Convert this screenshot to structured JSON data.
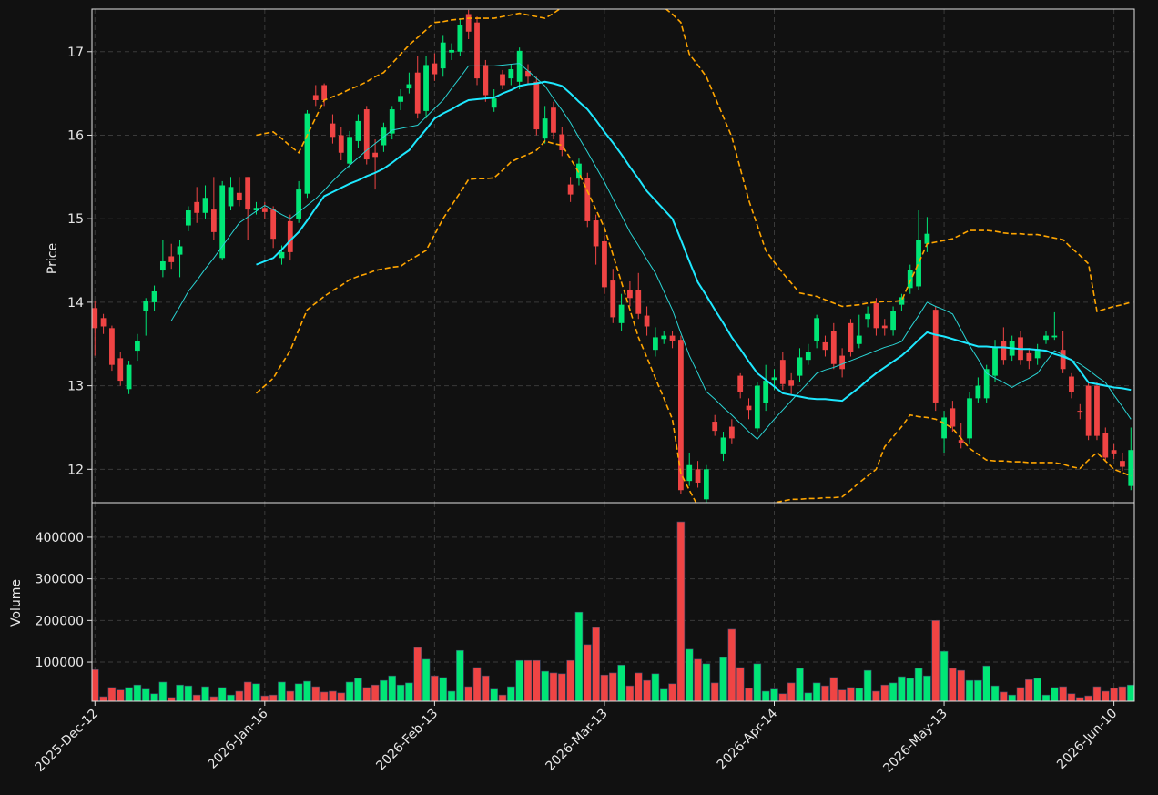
{
  "chart_data": {
    "type": "candlestick",
    "grid": true,
    "up_color": "#00e676",
    "down_color": "#ef4444",
    "ylabel": "Price",
    "ylim": [
      11.6,
      17.51
    ],
    "yticks": [
      12,
      13,
      14,
      15,
      16,
      17
    ],
    "categories": [
      "2025-Dec-12",
      null,
      null,
      null,
      null,
      null,
      null,
      null,
      null,
      null,
      null,
      null,
      null,
      null,
      null,
      null,
      null,
      null,
      null,
      null,
      "2026-Jan-16",
      null,
      null,
      null,
      null,
      null,
      null,
      null,
      null,
      null,
      null,
      null,
      null,
      null,
      null,
      null,
      null,
      null,
      null,
      null,
      "2026-Feb-13",
      null,
      null,
      null,
      null,
      null,
      null,
      null,
      null,
      null,
      null,
      null,
      null,
      null,
      null,
      null,
      null,
      null,
      null,
      null,
      "2026-Mar-13",
      null,
      null,
      null,
      null,
      null,
      null,
      null,
      null,
      null,
      null,
      null,
      null,
      null,
      null,
      null,
      null,
      null,
      null,
      null,
      "2026-Apr-14",
      null,
      null,
      null,
      null,
      null,
      null,
      null,
      null,
      null,
      null,
      null,
      null,
      null,
      null,
      null,
      null,
      null,
      null,
      null,
      "2026-May-13",
      null,
      null,
      null,
      null,
      null,
      null,
      null,
      null,
      null,
      null,
      null,
      null,
      null,
      null,
      null,
      null,
      null,
      null,
      null,
      "2026-Jun-10",
      null,
      null
    ],
    "open": [
      13.93,
      13.81,
      13.69,
      13.33,
      12.96,
      13.42,
      13.9,
      14.0,
      14.38,
      14.55,
      14.57,
      14.92,
      15.2,
      15.07,
      15.11,
      14.53,
      15.15,
      15.31,
      15.5,
      15.1,
      15.13,
      15.11,
      14.53,
      14.97,
      15.0,
      15.3,
      16.48,
      16.6,
      16.14,
      16.0,
      15.66,
      15.93,
      16.31,
      15.79,
      15.88,
      16.02,
      16.4,
      16.56,
      16.75,
      16.29,
      16.86,
      16.8,
      16.99,
      17.0,
      17.45,
      17.35,
      16.84,
      16.33,
      16.73,
      16.68,
      16.64,
      16.77,
      16.64,
      15.96,
      16.33,
      16.01,
      15.41,
      15.48,
      15.49,
      14.98,
      14.73,
      14.26,
      13.75,
      14.15,
      14.15,
      13.84,
      13.43,
      13.56,
      13.6,
      13.55,
      11.86,
      12.0,
      11.64,
      12.57,
      12.19,
      12.51,
      13.12,
      12.76,
      12.49,
      12.79,
      13.07,
      13.31,
      13.07,
      13.12,
      13.31,
      13.53,
      13.52,
      13.65,
      13.36,
      13.75,
      13.5,
      13.8,
      13.99,
      13.72,
      13.67,
      13.97,
      14.17,
      14.19,
      14.7,
      13.91,
      12.37,
      12.73,
      12.35,
      12.37,
      12.85,
      12.85,
      13.12,
      13.53,
      13.36,
      13.58,
      13.39,
      13.33,
      13.55,
      13.58,
      13.43,
      13.11,
      12.7,
      13.0,
      13.0,
      12.43,
      12.23,
      12.1,
      11.8
    ],
    "high": [
      14.02,
      13.86,
      13.72,
      13.4,
      13.3,
      13.62,
      14.05,
      14.2,
      14.75,
      14.7,
      14.75,
      15.15,
      15.38,
      15.4,
      15.5,
      15.45,
      15.5,
      15.5,
      15.5,
      15.2,
      15.2,
      15.15,
      14.68,
      15.05,
      15.45,
      16.3,
      16.6,
      16.62,
      16.25,
      16.1,
      16.05,
      16.25,
      16.35,
      15.95,
      16.15,
      16.35,
      16.55,
      16.75,
      16.95,
      16.95,
      16.98,
      17.2,
      17.1,
      17.4,
      17.5,
      17.42,
      16.9,
      16.55,
      16.78,
      16.85,
      17.05,
      16.85,
      16.7,
      16.35,
      16.4,
      16.1,
      15.5,
      15.72,
      15.55,
      15.05,
      14.8,
      14.4,
      14.1,
      14.25,
      14.35,
      13.95,
      13.7,
      13.65,
      13.65,
      13.6,
      12.2,
      12.1,
      12.05,
      12.65,
      12.45,
      12.6,
      13.15,
      12.85,
      13.05,
      13.25,
      13.2,
      13.4,
      13.15,
      13.45,
      13.5,
      13.85,
      13.6,
      13.75,
      13.45,
      13.8,
      13.85,
      13.95,
      14.05,
      13.8,
      13.95,
      14.1,
      14.45,
      15.1,
      15.02,
      13.95,
      12.7,
      12.82,
      12.55,
      12.92,
      13.1,
      13.25,
      13.55,
      13.7,
      13.6,
      13.65,
      13.45,
      13.5,
      13.65,
      13.88,
      13.65,
      13.15,
      12.78,
      13.05,
      13.05,
      12.5,
      12.3,
      12.2,
      12.5
    ],
    "low": [
      13.36,
      13.62,
      13.18,
      13.0,
      12.9,
      13.3,
      13.6,
      13.9,
      14.3,
      14.4,
      14.3,
      14.85,
      14.95,
      15.0,
      14.75,
      14.5,
      15.1,
      15.15,
      14.75,
      15.05,
      15.0,
      14.65,
      14.45,
      14.5,
      14.95,
      15.25,
      16.35,
      16.35,
      15.9,
      15.7,
      15.6,
      15.85,
      15.65,
      15.35,
      15.8,
      15.95,
      16.3,
      16.5,
      16.2,
      16.2,
      16.65,
      16.7,
      16.9,
      16.95,
      17.15,
      16.6,
      16.4,
      16.28,
      16.55,
      16.6,
      16.55,
      16.6,
      16.0,
      15.9,
      15.95,
      15.75,
      15.2,
      15.4,
      14.9,
      14.45,
      14.1,
      13.75,
      13.65,
      13.95,
      13.8,
      13.6,
      13.35,
      13.5,
      13.45,
      11.7,
      11.8,
      11.78,
      11.6,
      12.4,
      12.1,
      12.3,
      12.85,
      12.6,
      12.45,
      12.7,
      12.95,
      12.95,
      12.9,
      13.05,
      13.25,
      13.45,
      13.35,
      13.2,
      13.1,
      13.35,
      13.45,
      13.7,
      13.6,
      13.6,
      13.6,
      13.9,
      14.1,
      14.15,
      14.6,
      12.7,
      12.2,
      12.45,
      12.25,
      12.3,
      12.8,
      12.8,
      13.05,
      13.25,
      13.3,
      13.25,
      13.2,
      13.25,
      13.5,
      13.55,
      13.15,
      12.85,
      12.6,
      12.35,
      12.35,
      12.1,
      12.12,
      11.98,
      11.75
    ],
    "close": [
      13.69,
      13.71,
      13.25,
      13.06,
      13.25,
      13.54,
      14.02,
      14.13,
      14.49,
      14.48,
      14.67,
      15.1,
      15.07,
      15.25,
      14.84,
      15.4,
      15.38,
      15.22,
      15.11,
      15.13,
      15.08,
      14.76,
      14.6,
      14.6,
      15.35,
      16.26,
      16.42,
      16.42,
      15.98,
      15.79,
      15.98,
      16.17,
      15.71,
      15.74,
      16.09,
      16.31,
      16.47,
      16.61,
      16.26,
      16.84,
      16.73,
      17.11,
      17.02,
      17.32,
      17.24,
      16.68,
      16.48,
      16.44,
      16.6,
      16.79,
      17.01,
      16.7,
      16.07,
      16.2,
      16.03,
      15.82,
      15.29,
      15.66,
      14.97,
      14.67,
      14.18,
      13.82,
      13.97,
      14.05,
      13.86,
      13.71,
      13.58,
      13.6,
      13.54,
      11.75,
      12.05,
      11.84,
      12.0,
      12.46,
      12.38,
      12.37,
      12.93,
      12.71,
      13.0,
      13.06,
      13.1,
      13.02,
      13.0,
      13.34,
      13.41,
      13.81,
      13.43,
      13.26,
      13.2,
      13.41,
      13.6,
      13.86,
      13.69,
      13.69,
      13.89,
      14.06,
      14.39,
      14.75,
      14.82,
      12.8,
      12.62,
      12.51,
      12.32,
      12.85,
      13.0,
      13.2,
      13.47,
      13.31,
      13.53,
      13.31,
      13.3,
      13.44,
      13.6,
      13.6,
      13.2,
      12.93,
      12.69,
      12.4,
      12.4,
      12.14,
      12.19,
      12.03,
      12.23
    ],
    "overlays": [
      {
        "color": "#2ad4d4",
        "linewidth": 1,
        "linestyle": "solid",
        "values": [
          null,
          null,
          null,
          null,
          null,
          null,
          null,
          null,
          null,
          13.78,
          13.95,
          14.13,
          14.26,
          14.4,
          14.53,
          14.67,
          14.81,
          14.95,
          15.02,
          15.09,
          15.16,
          15.11,
          15.05,
          15.0,
          15.08,
          15.16,
          15.24,
          15.34,
          15.45,
          15.55,
          15.64,
          15.73,
          15.82,
          15.9,
          15.98,
          16.06,
          16.08,
          16.1,
          16.12,
          16.22,
          16.32,
          16.42,
          16.56,
          16.69,
          16.83,
          16.83,
          16.83,
          16.83,
          16.84,
          16.85,
          16.86,
          16.77,
          16.68,
          16.59,
          16.44,
          16.3,
          16.15,
          15.97,
          15.8,
          15.62,
          15.44,
          15.24,
          15.04,
          14.84,
          14.68,
          14.51,
          14.35,
          14.13,
          13.91,
          13.63,
          13.36,
          13.15,
          12.93,
          12.84,
          12.74,
          12.65,
          12.55,
          12.45,
          12.36,
          12.48,
          12.6,
          12.71,
          12.82,
          12.93,
          13.04,
          13.15,
          13.19,
          13.22,
          13.26,
          13.3,
          13.34,
          13.38,
          13.42,
          13.46,
          13.49,
          13.53,
          13.69,
          13.84,
          14.0,
          13.95,
          13.91,
          13.86,
          13.67,
          13.48,
          13.32,
          13.15,
          13.09,
          13.04,
          12.98,
          13.04,
          13.09,
          13.15,
          13.29,
          13.42,
          13.37,
          13.31,
          13.26,
          13.19,
          13.11,
          13.04,
          12.89,
          12.75,
          12.6
        ]
      },
      {
        "color": "#1ee8ff",
        "linewidth": 2,
        "linestyle": "solid",
        "values": [
          null,
          null,
          null,
          null,
          null,
          null,
          null,
          null,
          null,
          null,
          null,
          null,
          null,
          null,
          null,
          null,
          null,
          null,
          null,
          14.45,
          14.49,
          14.53,
          14.63,
          14.74,
          14.84,
          14.98,
          15.13,
          15.27,
          15.32,
          15.37,
          15.42,
          15.46,
          15.51,
          15.55,
          15.6,
          15.67,
          15.75,
          15.82,
          15.95,
          16.07,
          16.2,
          16.26,
          16.31,
          16.37,
          16.42,
          16.43,
          16.44,
          16.45,
          16.5,
          16.54,
          16.59,
          16.61,
          16.62,
          16.64,
          16.62,
          16.59,
          16.5,
          16.4,
          16.31,
          16.18,
          16.04,
          15.91,
          15.77,
          15.62,
          15.48,
          15.33,
          15.22,
          15.11,
          15.0,
          14.75,
          14.49,
          14.24,
          14.08,
          13.91,
          13.75,
          13.58,
          13.44,
          13.29,
          13.15,
          13.07,
          12.99,
          12.91,
          12.89,
          12.87,
          12.85,
          12.84,
          12.84,
          12.83,
          12.82,
          12.9,
          12.98,
          13.07,
          13.15,
          13.22,
          13.29,
          13.36,
          13.45,
          13.55,
          13.64,
          13.61,
          13.59,
          13.56,
          13.53,
          13.5,
          13.47,
          13.47,
          13.46,
          13.46,
          13.45,
          13.44,
          13.44,
          13.43,
          13.42,
          13.38,
          13.35,
          13.31,
          13.18,
          13.04,
          13.02,
          13.0,
          12.98,
          12.97,
          12.95
        ]
      },
      {
        "color": "#ffa500",
        "linewidth": 1.6,
        "linestyle": "dashed",
        "values": [
          null,
          null,
          null,
          null,
          null,
          null,
          null,
          null,
          null,
          null,
          null,
          null,
          null,
          null,
          null,
          null,
          null,
          null,
          null,
          16.0,
          16.02,
          16.04,
          15.96,
          15.87,
          15.79,
          16.0,
          16.21,
          16.42,
          16.46,
          16.5,
          16.55,
          16.59,
          16.64,
          16.7,
          16.75,
          16.86,
          16.97,
          17.08,
          17.17,
          17.26,
          17.35,
          17.36,
          17.38,
          17.39,
          17.4,
          17.4,
          17.4,
          17.4,
          17.42,
          17.44,
          17.46,
          17.44,
          17.42,
          17.4,
          17.46,
          17.53,
          17.65,
          17.75,
          17.85,
          17.9,
          17.95,
          17.95,
          17.93,
          17.9,
          17.85,
          17.75,
          17.65,
          17.53,
          17.45,
          17.35,
          16.97,
          16.84,
          16.7,
          16.46,
          16.22,
          15.98,
          15.6,
          15.22,
          14.92,
          14.62,
          14.48,
          14.35,
          14.23,
          14.11,
          14.09,
          14.07,
          14.03,
          13.99,
          13.95,
          13.96,
          13.97,
          13.99,
          14.0,
          14.01,
          14.01,
          14.02,
          14.25,
          14.47,
          14.7,
          14.72,
          14.74,
          14.76,
          14.81,
          14.86,
          14.86,
          14.86,
          14.85,
          14.83,
          14.82,
          14.82,
          14.81,
          14.81,
          14.79,
          14.77,
          14.75,
          14.65,
          14.56,
          14.46,
          13.89,
          13.92,
          13.95,
          13.97,
          14.0
        ]
      },
      {
        "color": "#ffa500",
        "linewidth": 1.6,
        "linestyle": "dashed",
        "values": [
          null,
          null,
          null,
          null,
          null,
          null,
          null,
          null,
          null,
          null,
          null,
          null,
          null,
          null,
          null,
          null,
          null,
          null,
          null,
          12.91,
          13.0,
          13.09,
          13.26,
          13.42,
          13.67,
          13.91,
          13.99,
          14.07,
          14.14,
          14.2,
          14.27,
          14.31,
          14.34,
          14.38,
          14.4,
          14.42,
          14.43,
          14.5,
          14.56,
          14.62,
          14.81,
          15.0,
          15.16,
          15.31,
          15.47,
          15.48,
          15.48,
          15.49,
          15.58,
          15.68,
          15.73,
          15.77,
          15.82,
          15.93,
          15.9,
          15.88,
          15.72,
          15.55,
          15.33,
          15.11,
          14.89,
          14.57,
          14.24,
          13.91,
          13.58,
          13.34,
          13.09,
          12.85,
          12.6,
          11.95,
          11.75,
          11.56,
          11.45,
          11.38,
          11.35,
          11.37,
          11.42,
          11.48,
          11.53,
          11.57,
          11.6,
          11.62,
          11.64,
          11.64,
          11.65,
          11.65,
          11.66,
          11.66,
          11.67,
          11.75,
          11.84,
          11.92,
          12.0,
          12.27,
          12.39,
          12.51,
          12.65,
          12.63,
          12.62,
          12.6,
          12.55,
          12.49,
          12.37,
          12.25,
          12.18,
          12.11,
          12.1,
          12.1,
          12.09,
          12.09,
          12.08,
          12.08,
          12.08,
          12.08,
          12.06,
          12.03,
          12.01,
          12.11,
          12.2,
          12.1,
          12.0,
          11.96,
          11.92
        ]
      }
    ],
    "volume": {
      "ylabel": "Volume",
      "ylim": [
        6000,
        483000
      ],
      "yticks": [
        100000,
        200000,
        300000,
        400000
      ],
      "values": [
        82000,
        17000,
        39000,
        33000,
        39000,
        45000,
        35000,
        24000,
        52000,
        15000,
        45000,
        43000,
        21000,
        41000,
        17000,
        39000,
        21000,
        30000,
        52000,
        48000,
        19000,
        21000,
        52000,
        30000,
        48000,
        54000,
        41000,
        28000,
        30000,
        26000,
        52000,
        61000,
        39000,
        45000,
        56000,
        67000,
        45000,
        50000,
        135000,
        107000,
        67000,
        63000,
        30000,
        128000,
        41000,
        87000,
        67000,
        35000,
        21000,
        41000,
        104000,
        104000,
        104000,
        78000,
        74000,
        72000,
        104000,
        220000,
        142000,
        183000,
        69000,
        74000,
        93000,
        43000,
        74000,
        56000,
        72000,
        35000,
        48000,
        437000,
        131000,
        107000,
        96000,
        50000,
        111000,
        179000,
        87000,
        37000,
        96000,
        30000,
        35000,
        24000,
        50000,
        85000,
        26000,
        50000,
        43000,
        63000,
        33000,
        39000,
        37000,
        80000,
        30000,
        45000,
        50000,
        65000,
        61000,
        85000,
        67000,
        200000,
        126000,
        85000,
        80000,
        56000,
        56000,
        91000,
        43000,
        28000,
        21000,
        39000,
        58000,
        61000,
        21000,
        39000,
        41000,
        24000,
        15000,
        19000,
        41000,
        30000,
        37000,
        41000,
        45000
      ]
    }
  }
}
